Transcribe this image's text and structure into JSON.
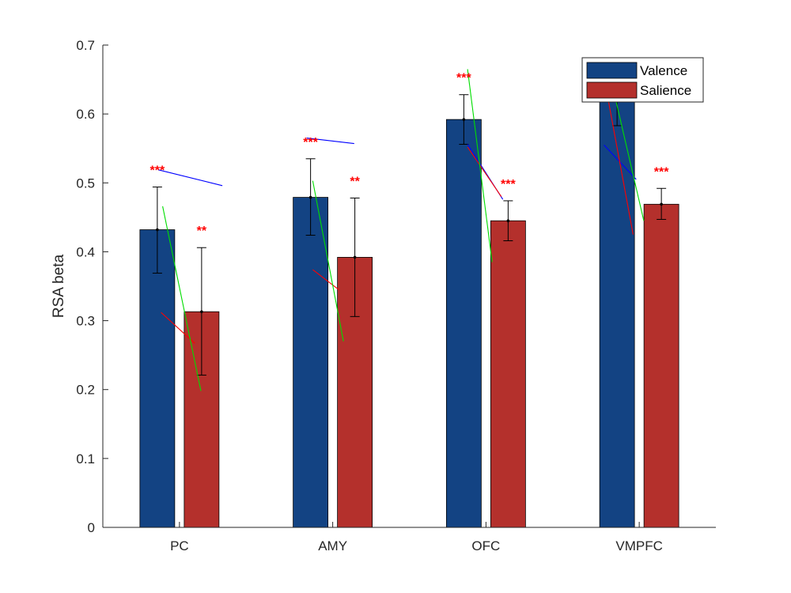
{
  "chart_data": {
    "type": "bar",
    "title": "",
    "xlabel": "",
    "ylabel": "RSA beta",
    "ylim": [
      0,
      0.7
    ],
    "yticks": [
      "0",
      "0.1",
      "0.2",
      "0.3",
      "0.4",
      "0.5",
      "0.6",
      "0.7"
    ],
    "ytick_values": [
      0,
      0.1,
      0.2,
      0.3,
      0.4,
      0.5,
      0.6,
      0.7
    ],
    "categories": [
      "PC",
      "AMY",
      "OFC",
      "VMPFC"
    ],
    "legend_position": "top-right",
    "series": [
      {
        "name": "Valence",
        "color": "#134383",
        "values": [
          0.432,
          0.479,
          0.592,
          0.647
        ],
        "err_low": [
          0.369,
          0.424,
          0.556,
          0.583
        ],
        "err_high": [
          0.494,
          0.535,
          0.628,
          0.68
        ],
        "significance": [
          "***",
          "***",
          "***",
          ""
        ]
      },
      {
        "name": "Salience",
        "color": "#B4302C",
        "values": [
          0.313,
          0.392,
          0.445,
          0.469
        ],
        "err_low": [
          0.221,
          0.306,
          0.416,
          0.447
        ],
        "err_high": [
          0.406,
          0.478,
          0.474,
          0.492
        ],
        "significance": [
          "**",
          "**",
          "***",
          "***"
        ]
      }
    ],
    "significance_color": "#FF0000",
    "overlay_lines": [
      {
        "color": "#0000FF",
        "points": [
          [
            0.86,
            0.519
          ],
          [
            1.28,
            0.496
          ]
        ]
      },
      {
        "color": "#FF0000",
        "points": [
          [
            0.88,
            0.312
          ],
          [
            1.1,
            0.267
          ]
        ]
      },
      {
        "color": "#00DD00",
        "points": [
          [
            0.89,
            0.466
          ],
          [
            1.14,
            0.198
          ]
        ]
      },
      {
        "color": "#0000FF",
        "points": [
          [
            1.83,
            0.565
          ],
          [
            2.14,
            0.557
          ]
        ]
      },
      {
        "color": "#FF0000",
        "points": [
          [
            1.87,
            0.374
          ],
          [
            2.04,
            0.345
          ]
        ]
      },
      {
        "color": "#00DD00",
        "points": [
          [
            1.87,
            0.503
          ],
          [
            2.07,
            0.27
          ]
        ]
      },
      {
        "color": "#0000FF",
        "points": [
          [
            2.88,
            0.556
          ],
          [
            3.11,
            0.476
          ]
        ]
      },
      {
        "color": "#FF0000",
        "points": [
          [
            2.88,
            0.552
          ],
          [
            3.1,
            0.48
          ]
        ]
      },
      {
        "color": "#00DD00",
        "points": [
          [
            2.88,
            0.665
          ],
          [
            3.04,
            0.385
          ]
        ]
      },
      {
        "color": "#0000FF",
        "points": [
          [
            3.77,
            0.555
          ],
          [
            3.98,
            0.505
          ]
        ]
      },
      {
        "color": "#FF0000",
        "points": [
          [
            3.79,
            0.63
          ],
          [
            3.96,
            0.425
          ]
        ]
      },
      {
        "color": "#00DD00",
        "points": [
          [
            3.8,
            0.665
          ],
          [
            4.03,
            0.445
          ]
        ]
      }
    ]
  }
}
